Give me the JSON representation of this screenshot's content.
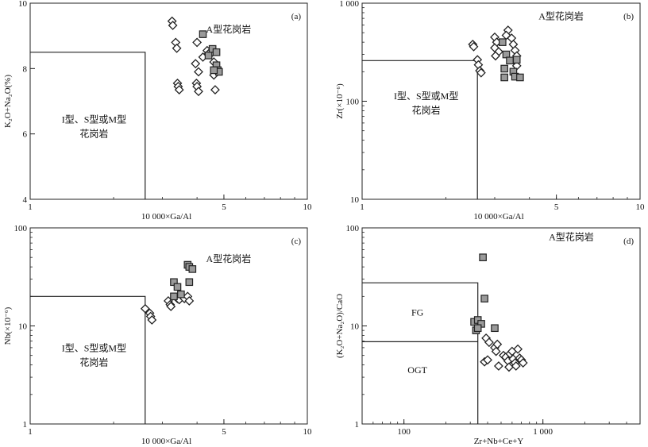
{
  "chart_data": [
    {
      "id": "a",
      "type": "scatter",
      "panel_label": "(a)",
      "xlabel": "10 000×Ga/Al",
      "ylabel": "K₂O+Na₂O(%)",
      "xscale": "log",
      "yscale": "linear",
      "xlim": [
        1,
        10
      ],
      "ylim": [
        4,
        10
      ],
      "xticks": [
        {
          "v": 1,
          "label": "1"
        },
        {
          "v": 5,
          "label": "5"
        },
        {
          "v": 10,
          "label": "10"
        }
      ],
      "yticks": [
        {
          "v": 4,
          "label": "4"
        },
        {
          "v": 6,
          "label": "6"
        },
        {
          "v": 8,
          "label": "8"
        },
        {
          "v": 10,
          "label": "10"
        }
      ],
      "boundary": [
        [
          1,
          8.5
        ],
        [
          2.6,
          8.5
        ],
        [
          2.6,
          4
        ]
      ],
      "regions": [
        {
          "lines": [
            "A型花岗岩"
          ],
          "x": 5.2,
          "y": 9.1
        },
        {
          "lines": [
            "I型、S型或M型",
            "花岗岩"
          ],
          "x": 1.7,
          "y": 6.35
        }
      ],
      "series": [
        {
          "marker": "diamond",
          "points": [
            [
              3.25,
              9.45
            ],
            [
              3.27,
              9.32
            ],
            [
              3.35,
              8.8
            ],
            [
              3.38,
              8.62
            ],
            [
              3.4,
              7.55
            ],
            [
              3.42,
              7.45
            ],
            [
              3.45,
              7.35
            ],
            [
              4.0,
              8.8
            ],
            [
              3.95,
              8.15
            ],
            [
              4.05,
              7.9
            ],
            [
              3.98,
              7.55
            ],
            [
              4.0,
              7.45
            ],
            [
              4.05,
              7.3
            ],
            [
              4.2,
              8.35
            ],
            [
              4.35,
              8.55
            ],
            [
              4.4,
              8.45
            ],
            [
              4.55,
              8.5
            ],
            [
              4.6,
              8.2
            ],
            [
              4.65,
              8.0
            ],
            [
              4.6,
              7.8
            ],
            [
              4.65,
              7.35
            ]
          ]
        },
        {
          "marker": "square",
          "points": [
            [
              4.2,
              9.05
            ],
            [
              4.4,
              8.4
            ],
            [
              4.55,
              8.6
            ],
            [
              4.7,
              8.5
            ],
            [
              4.7,
              8.1
            ],
            [
              4.75,
              7.95
            ],
            [
              4.8,
              7.9
            ],
            [
              4.6,
              7.95
            ]
          ]
        }
      ]
    },
    {
      "id": "b",
      "type": "scatter",
      "panel_label": "(b)",
      "xlabel": "10 000×Ga/Al",
      "ylabel": "Zr(×10⁻⁶)",
      "xscale": "log",
      "yscale": "log",
      "xlim": [
        1,
        10
      ],
      "ylim": [
        10,
        1000
      ],
      "xticks": [
        {
          "v": 1,
          "label": "1"
        },
        {
          "v": 5,
          "label": "5"
        },
        {
          "v": 10,
          "label": "10"
        }
      ],
      "yticks": [
        {
          "v": 10,
          "label": "10"
        },
        {
          "v": 100,
          "label": "100"
        },
        {
          "v": 1000,
          "label": "1 000"
        }
      ],
      "boundary": [
        [
          1,
          260
        ],
        [
          2.6,
          260
        ],
        [
          2.6,
          10
        ]
      ],
      "regions": [
        {
          "lines": [
            "A型花岗岩"
          ],
          "x": 5.2,
          "y": 680
        },
        {
          "lines": [
            "I型、S型或M型",
            "花岗岩"
          ],
          "x": 1.7,
          "y": 105
        }
      ],
      "series": [
        {
          "marker": "diamond",
          "points": [
            [
              2.5,
              380
            ],
            [
              2.52,
              360
            ],
            [
              2.6,
              265
            ],
            [
              2.62,
              235
            ],
            [
              2.65,
              205
            ],
            [
              2.68,
              195
            ],
            [
              3.0,
              450
            ],
            [
              3.05,
              400
            ],
            [
              3.0,
              350
            ],
            [
              3.1,
              320
            ],
            [
              3.02,
              290
            ],
            [
              3.35,
              530
            ],
            [
              3.3,
              470
            ],
            [
              3.45,
              440
            ],
            [
              3.5,
              380
            ],
            [
              3.55,
              330
            ],
            [
              3.6,
              290
            ],
            [
              3.55,
              255
            ],
            [
              3.6,
              230
            ]
          ]
        },
        {
          "marker": "square",
          "points": [
            [
              3.2,
              400
            ],
            [
              3.3,
              300
            ],
            [
              3.4,
              260
            ],
            [
              3.6,
              265
            ],
            [
              3.25,
              215
            ],
            [
              3.5,
              200
            ],
            [
              3.25,
              175
            ],
            [
              3.55,
              178
            ],
            [
              3.7,
              175
            ]
          ]
        }
      ]
    },
    {
      "id": "c",
      "type": "scatter",
      "panel_label": "(c)",
      "xlabel": "10 000×Ga/Al",
      "ylabel": "Nb(×10⁻⁶)",
      "xscale": "log",
      "yscale": "log",
      "xlim": [
        1,
        10
      ],
      "ylim": [
        1,
        100
      ],
      "xticks": [
        {
          "v": 1,
          "label": "1"
        },
        {
          "v": 5,
          "label": "5"
        },
        {
          "v": 10,
          "label": "10"
        }
      ],
      "yticks": [
        {
          "v": 1,
          "label": "1"
        },
        {
          "v": 10,
          "label": "10"
        },
        {
          "v": 100,
          "label": "100"
        }
      ],
      "boundary": [
        [
          1,
          20
        ],
        [
          2.6,
          20
        ],
        [
          2.6,
          1
        ]
      ],
      "regions": [
        {
          "lines": [
            "A型花岗岩"
          ],
          "x": 5.2,
          "y": 45
        },
        {
          "lines": [
            "I型、S型或M型",
            "花岗岩"
          ],
          "x": 1.7,
          "y": 5.5
        }
      ],
      "series": [
        {
          "marker": "diamond",
          "points": [
            [
              2.6,
              15
            ],
            [
              2.7,
              13.5
            ],
            [
              2.72,
              12.5
            ],
            [
              2.75,
              11.5
            ],
            [
              3.15,
              18
            ],
            [
              3.2,
              16.5
            ],
            [
              3.22,
              15.8
            ],
            [
              3.4,
              19
            ],
            [
              3.45,
              18.5
            ],
            [
              3.6,
              19
            ],
            [
              3.7,
              20
            ],
            [
              3.75,
              18
            ]
          ]
        },
        {
          "marker": "square",
          "points": [
            [
              3.3,
              28
            ],
            [
              3.4,
              25
            ],
            [
              3.5,
              21
            ],
            [
              3.7,
              42
            ],
            [
              3.75,
              40
            ],
            [
              3.85,
              38
            ],
            [
              3.75,
              28
            ],
            [
              3.3,
              20
            ]
          ]
        }
      ]
    },
    {
      "id": "d",
      "type": "scatter",
      "panel_label": "(d)",
      "xlabel": "Zr+Nb+Ce+Y",
      "ylabel": "(K₂O+Na₂O)/CaO",
      "xscale": "log",
      "yscale": "log",
      "xlim": [
        50,
        5000
      ],
      "ylim": [
        1,
        100
      ],
      "xticks": [
        {
          "v": 100,
          "label": "100"
        },
        {
          "v": 1000,
          "label": "1 000"
        }
      ],
      "yticks": [
        {
          "v": 1,
          "label": "1"
        },
        {
          "v": 10,
          "label": "10"
        },
        {
          "v": 100,
          "label": "100"
        }
      ],
      "boundary": [
        [
          50,
          27.5
        ],
        [
          340,
          27.5
        ],
        [
          340,
          1
        ]
      ],
      "boundary2": [
        [
          50,
          6.9
        ],
        [
          340,
          6.9
        ]
      ],
      "regions": [
        {
          "lines": [
            "A型花岗岩"
          ],
          "x": 1600,
          "y": 75
        },
        {
          "lines": [
            "FG"
          ],
          "x": 125,
          "y": 12.8
        },
        {
          "lines": [
            "OGT"
          ],
          "x": 125,
          "y": 3.3
        }
      ],
      "series": [
        {
          "marker": "diamond",
          "points": [
            [
              380,
              4.3
            ],
            [
              400,
              4.5
            ],
            [
              390,
              7.5
            ],
            [
              410,
              6.8
            ],
            [
              450,
              6
            ],
            [
              460,
              5.5
            ],
            [
              480,
              3.9
            ],
            [
              470,
              6.5
            ],
            [
              520,
              5
            ],
            [
              540,
              4.8
            ],
            [
              560,
              4.4
            ],
            [
              570,
              3.8
            ],
            [
              580,
              5.2
            ],
            [
              600,
              5.5
            ],
            [
              610,
              4.6
            ],
            [
              630,
              4.2
            ],
            [
              640,
              3.9
            ],
            [
              660,
              5.8
            ],
            [
              680,
              4.7
            ],
            [
              700,
              4.5
            ],
            [
              720,
              4.2
            ]
          ]
        },
        {
          "marker": "square",
          "points": [
            [
              370,
              50
            ],
            [
              380,
              19
            ],
            [
              320,
              11
            ],
            [
              340,
              11.5
            ],
            [
              360,
              10.5
            ],
            [
              330,
              9
            ],
            [
              340,
              9.5
            ],
            [
              450,
              9.5
            ]
          ]
        }
      ]
    }
  ]
}
